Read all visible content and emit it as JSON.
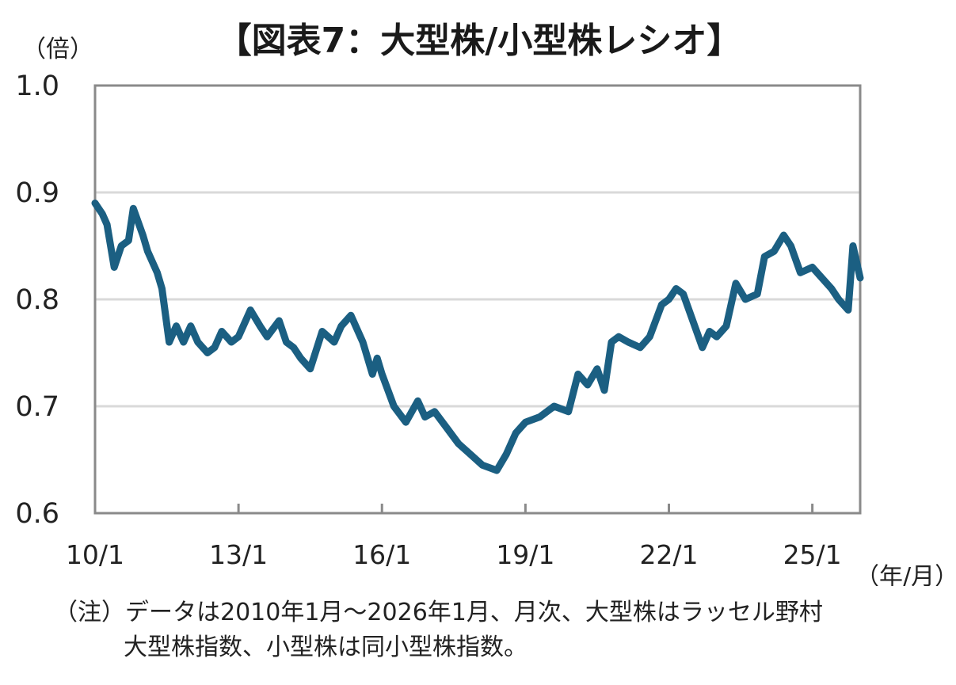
{
  "chart_data": {
    "type": "line",
    "title": "【図表7：大型株/小型株レシオ】",
    "y_unit_label": "（倍）",
    "x_unit_label": "（年/月）",
    "ylim": [
      0.6,
      1.0
    ],
    "xlim": [
      2010.0,
      2026.0
    ],
    "y_ticks": [
      1.0,
      0.9,
      0.8,
      0.7,
      0.6
    ],
    "y_tick_labels": [
      "1.0",
      "0.9",
      "0.8",
      "0.7",
      "0.6"
    ],
    "x_ticks": [
      2010.0,
      2013.0,
      2016.0,
      2019.0,
      2022.0,
      2025.0
    ],
    "x_tick_labels": [
      "10/1",
      "13/1",
      "16/1",
      "19/1",
      "22/1",
      "25/1"
    ],
    "grid": true,
    "series": [
      {
        "color": "#1b5f82",
        "x": [
          2010.0,
          2010.15,
          2010.25,
          2010.4,
          2010.55,
          2010.7,
          2010.8,
          2011.0,
          2011.1,
          2011.3,
          2011.4,
          2011.55,
          2011.7,
          2011.85,
          2012.0,
          2012.15,
          2012.35,
          2012.5,
          2012.65,
          2012.85,
          2013.0,
          2013.25,
          2013.45,
          2013.6,
          2013.85,
          2014.0,
          2014.15,
          2014.3,
          2014.5,
          2014.75,
          2015.0,
          2015.15,
          2015.35,
          2015.6,
          2015.8,
          2015.9,
          2016.0,
          2016.25,
          2016.5,
          2016.75,
          2016.9,
          2017.1,
          2017.35,
          2017.6,
          2017.85,
          2018.1,
          2018.4,
          2018.6,
          2018.8,
          2019.0,
          2019.3,
          2019.6,
          2019.9,
          2020.1,
          2020.3,
          2020.5,
          2020.65,
          2020.8,
          2020.95,
          2021.15,
          2021.4,
          2021.6,
          2021.85,
          2022.0,
          2022.15,
          2022.3,
          2022.5,
          2022.7,
          2022.85,
          2023.0,
          2023.2,
          2023.4,
          2023.6,
          2023.85,
          2024.0,
          2024.2,
          2024.4,
          2024.55,
          2024.75,
          2025.0,
          2025.2,
          2025.4,
          2025.55,
          2025.75,
          2025.85,
          2026.0
        ],
        "values": [
          0.89,
          0.88,
          0.87,
          0.83,
          0.85,
          0.855,
          0.885,
          0.86,
          0.845,
          0.825,
          0.81,
          0.76,
          0.775,
          0.76,
          0.775,
          0.76,
          0.75,
          0.755,
          0.77,
          0.76,
          0.765,
          0.79,
          0.775,
          0.765,
          0.78,
          0.76,
          0.755,
          0.745,
          0.735,
          0.77,
          0.76,
          0.775,
          0.785,
          0.76,
          0.73,
          0.745,
          0.73,
          0.7,
          0.685,
          0.705,
          0.69,
          0.695,
          0.68,
          0.665,
          0.655,
          0.645,
          0.64,
          0.655,
          0.675,
          0.685,
          0.69,
          0.7,
          0.695,
          0.73,
          0.72,
          0.735,
          0.715,
          0.76,
          0.765,
          0.76,
          0.755,
          0.765,
          0.795,
          0.8,
          0.81,
          0.805,
          0.78,
          0.755,
          0.77,
          0.765,
          0.775,
          0.815,
          0.8,
          0.805,
          0.84,
          0.845,
          0.86,
          0.85,
          0.825,
          0.83,
          0.82,
          0.81,
          0.8,
          0.79,
          0.85,
          0.82
        ]
      }
    ]
  },
  "note": {
    "line1": "（注）データは2010年1月～2026年1月、月次、大型株はラッセル野村",
    "line2": "大型株指数、小型株は同小型株指数。"
  }
}
